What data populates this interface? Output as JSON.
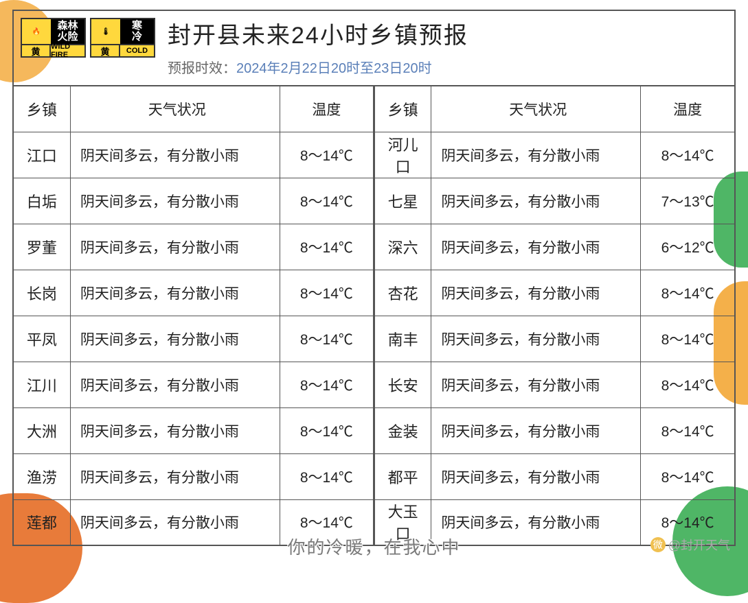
{
  "header": {
    "title": "封开县未来24小时乡镇预报",
    "subtitle_prefix": "预报时效：",
    "subtitle_time": "2024年2月22日20时至23日20时"
  },
  "alerts": [
    {
      "name_cn": "森林\n火险",
      "level_cn": "黄",
      "level_en": "WILD FIRE",
      "icon": "🔥",
      "bg": "#ffd83d"
    },
    {
      "name_cn": "寒\n冷",
      "level_cn": "黄",
      "level_en": "COLD",
      "icon": "🌡",
      "bg": "#ffd83d"
    }
  ],
  "columns": {
    "town": "乡镇",
    "condition": "天气状况",
    "temp": "温度"
  },
  "rows": [
    {
      "l_town": "江口",
      "l_cond": "阴天间多云，有分散小雨",
      "l_temp": "8～14℃",
      "r_town": "河儿口",
      "r_cond": "阴天间多云，有分散小雨",
      "r_temp": "8～14℃"
    },
    {
      "l_town": "白垢",
      "l_cond": "阴天间多云，有分散小雨",
      "l_temp": "8～14℃",
      "r_town": "七星",
      "r_cond": "阴天间多云，有分散小雨",
      "r_temp": "7～13℃"
    },
    {
      "l_town": "罗董",
      "l_cond": "阴天间多云，有分散小雨",
      "l_temp": "8～14℃",
      "r_town": "深六",
      "r_cond": "阴天间多云，有分散小雨",
      "r_temp": "6～12℃"
    },
    {
      "l_town": "长岗",
      "l_cond": "阴天间多云，有分散小雨",
      "l_temp": "8～14℃",
      "r_town": "杏花",
      "r_cond": "阴天间多云，有分散小雨",
      "r_temp": "8～14℃"
    },
    {
      "l_town": "平凤",
      "l_cond": "阴天间多云，有分散小雨",
      "l_temp": "8～14℃",
      "r_town": "南丰",
      "r_cond": "阴天间多云，有分散小雨",
      "r_temp": "8～14℃"
    },
    {
      "l_town": "江川",
      "l_cond": "阴天间多云，有分散小雨",
      "l_temp": "8～14℃",
      "r_town": "长安",
      "r_cond": "阴天间多云，有分散小雨",
      "r_temp": "8～14℃"
    },
    {
      "l_town": "大洲",
      "l_cond": "阴天间多云，有分散小雨",
      "l_temp": "8～14℃",
      "r_town": "金装",
      "r_cond": "阴天间多云，有分散小雨",
      "r_temp": "8～14℃"
    },
    {
      "l_town": "渔涝",
      "l_cond": "阴天间多云，有分散小雨",
      "l_temp": "8～14℃",
      "r_town": "都平",
      "r_cond": "阴天间多云，有分散小雨",
      "r_temp": "8～14℃"
    },
    {
      "l_town": "莲都",
      "l_cond": "阴天间多云，有分散小雨",
      "l_temp": "8～14℃",
      "r_town": "大玉口",
      "r_cond": "阴天间多云，有分散小雨",
      "r_temp": "8～14℃"
    }
  ],
  "footer": {
    "tagline": "你的冷暖，在我心中",
    "source": "@封开天气"
  },
  "colors": {
    "border": "#555",
    "title": "#222",
    "subtitle": "#666",
    "time": "#5a7fb8",
    "alert_yellow": "#ffd83d"
  }
}
